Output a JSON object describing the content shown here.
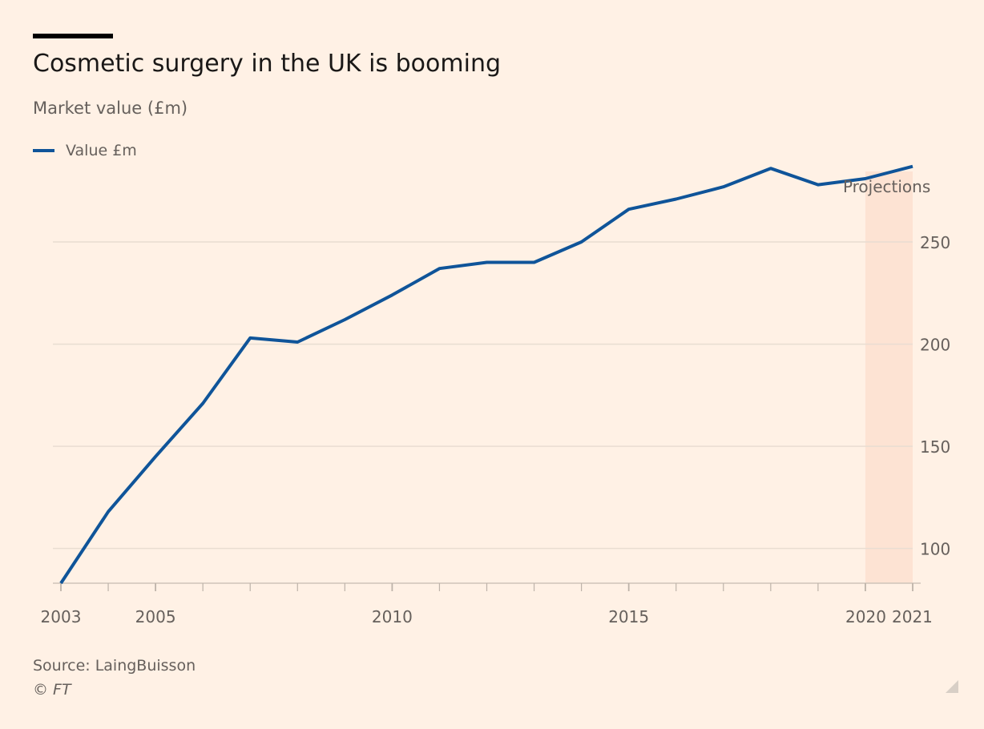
{
  "header": {
    "title": "Cosmetic surgery in the UK is booming",
    "subtitle": "Market value (£m)"
  },
  "footer": {
    "source": "Source: LaingBuisson",
    "credit": "© FT"
  },
  "colors": {
    "background": "#fff1e5",
    "line": "#0f5499",
    "gridline": "#e9ddd2",
    "projection_band": "#fde3d3"
  },
  "chart_data": {
    "type": "line",
    "title": "Cosmetic surgery in the UK is booming",
    "subtitle": "Market value (£m)",
    "xlabel": "",
    "ylabel": "",
    "x": [
      2003,
      2004,
      2005,
      2006,
      2007,
      2008,
      2009,
      2010,
      2011,
      2012,
      2013,
      2014,
      2015,
      2016,
      2017,
      2018,
      2019,
      2020,
      2021
    ],
    "series": [
      {
        "name": "Value £m",
        "values": [
          83,
          118,
          145,
          171,
          203,
          201,
          212,
          224,
          237,
          240,
          240,
          250,
          266,
          271,
          277,
          286,
          278,
          281,
          287
        ]
      }
    ],
    "x_ticks": [
      2003,
      2005,
      2010,
      2015,
      2020,
      2021
    ],
    "y_ticks": [
      100,
      150,
      200,
      250
    ],
    "xlim": [
      2003,
      2021
    ],
    "ylim": [
      83,
      290
    ],
    "y_axis_side": "right",
    "grid": "horizontal",
    "legend_position": "top-left",
    "projection_band": {
      "label": "Projections",
      "from": 2020,
      "to": 2021
    }
  }
}
